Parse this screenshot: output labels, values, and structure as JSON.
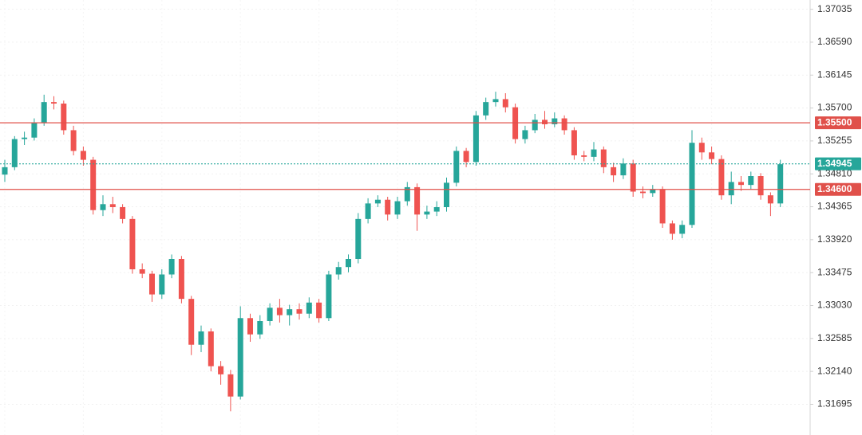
{
  "chart_data": {
    "type": "candlestick",
    "up_color": "#26a69a",
    "down_color": "#ef5350",
    "grid": true,
    "ylim": [
      1.3128,
      1.3716
    ],
    "yticks": [
      1.37035,
      {
        "value": 1.3659,
        "label": "1.36590"
      },
      1.36145,
      {
        "value": 1.357,
        "label": "1.35700"
      },
      1.35255,
      {
        "value": 1.3481,
        "label": "1.34810"
      },
      1.34365,
      {
        "value": 1.3392,
        "label": "1.33920"
      },
      1.33475,
      {
        "value": 1.3303,
        "label": "1.33030"
      },
      1.32585,
      {
        "value": 1.3214,
        "label": "1.32140"
      },
      1.31695
    ],
    "levels": [
      {
        "value": 1.355,
        "label": "1.35500",
        "color": "#e0504a",
        "style": "solid"
      },
      {
        "value": 1.34945,
        "label": "1.34945",
        "color": "#26a69a",
        "style": "dotted"
      },
      {
        "value": 1.346,
        "label": "1.34600",
        "color": "#e0504a",
        "style": "solid"
      }
    ],
    "open": [
      1.348,
      1.349,
      1.3528,
      1.353,
      1.355,
      1.3578,
      1.3576,
      1.354,
      1.3512,
      1.35,
      1.3432,
      1.344,
      1.3436,
      1.342,
      1.3352,
      1.3346,
      1.3318,
      1.3345,
      1.3366,
      1.3312,
      1.325,
      1.3268,
      1.3221,
      1.321,
      1.318,
      1.3286,
      1.3264,
      1.3282,
      1.33,
      1.329,
      1.3298,
      1.3292,
      1.3307,
      1.3286,
      1.3345,
      1.3355,
      1.3366,
      1.342,
      1.3441,
      1.3446,
      1.3426,
      1.3444,
      1.3463,
      1.3426,
      1.343,
      1.3436,
      1.3469,
      1.3512,
      1.3497,
      1.356,
      1.3578,
      1.3582,
      1.3571,
      1.3528,
      1.354,
      1.3554,
      1.3548,
      1.3556,
      1.354,
      1.3506,
      1.3504,
      1.3514,
      1.349,
      1.3479,
      1.3495,
      1.3457,
      1.3455,
      1.346,
      1.3414,
      1.34,
      1.3412,
      1.3523,
      1.351,
      1.3501,
      1.3452,
      1.347,
      1.3466,
      1.3478,
      1.3452,
      1.3441
    ],
    "high": [
      1.35,
      1.3532,
      1.3538,
      1.3556,
      1.3588,
      1.3586,
      1.358,
      1.3546,
      1.3518,
      1.3504,
      1.3452,
      1.345,
      1.344,
      1.3424,
      1.336,
      1.335,
      1.3352,
      1.3372,
      1.337,
      1.3316,
      1.3276,
      1.3272,
      1.3228,
      1.3216,
      1.3302,
      1.3292,
      1.329,
      1.3306,
      1.3312,
      1.3304,
      1.3306,
      1.3314,
      1.3312,
      1.335,
      1.3362,
      1.3372,
      1.3428,
      1.3448,
      1.3452,
      1.345,
      1.345,
      1.347,
      1.3468,
      1.3438,
      1.3444,
      1.3476,
      1.3518,
      1.3516,
      1.3566,
      1.3584,
      1.3592,
      1.359,
      1.3576,
      1.3546,
      1.3562,
      1.3566,
      1.3564,
      1.356,
      1.3544,
      1.3512,
      1.3524,
      1.3518,
      1.3496,
      1.3502,
      1.35,
      1.3464,
      1.3466,
      1.3464,
      1.3418,
      1.3418,
      1.354,
      1.353,
      1.3518,
      1.3506,
      1.3484,
      1.3478,
      1.3484,
      1.3482,
      1.3456,
      1.35
    ],
    "low": [
      1.347,
      1.3486,
      1.352,
      1.3526,
      1.3546,
      1.3568,
      1.3534,
      1.3506,
      1.3492,
      1.3426,
      1.3424,
      1.3428,
      1.3414,
      1.3346,
      1.334,
      1.3308,
      1.3312,
      1.334,
      1.3306,
      1.3236,
      1.324,
      1.3214,
      1.3196,
      1.316,
      1.3176,
      1.3254,
      1.3258,
      1.3276,
      1.328,
      1.3276,
      1.3284,
      1.3286,
      1.328,
      1.3282,
      1.3338,
      1.3348,
      1.336,
      1.3414,
      1.3436,
      1.3418,
      1.342,
      1.3438,
      1.3404,
      1.342,
      1.3424,
      1.343,
      1.3464,
      1.349,
      1.3492,
      1.3554,
      1.3572,
      1.3564,
      1.3522,
      1.3522,
      1.3536,
      1.3542,
      1.3544,
      1.3534,
      1.35,
      1.3498,
      1.3498,
      1.3482,
      1.347,
      1.3474,
      1.345,
      1.3448,
      1.345,
      1.3408,
      1.3392,
      1.3394,
      1.3408,
      1.35,
      1.3494,
      1.3446,
      1.344,
      1.3458,
      1.346,
      1.3446,
      1.3424,
      1.3436
    ],
    "close": [
      1.349,
      1.3528,
      1.353,
      1.355,
      1.3578,
      1.3576,
      1.354,
      1.3512,
      1.35,
      1.3432,
      1.344,
      1.3436,
      1.342,
      1.3352,
      1.3346,
      1.3318,
      1.3345,
      1.3366,
      1.3312,
      1.325,
      1.3268,
      1.3221,
      1.321,
      1.318,
      1.3286,
      1.3264,
      1.3282,
      1.33,
      1.329,
      1.3298,
      1.3292,
      1.3307,
      1.3286,
      1.3345,
      1.3355,
      1.3366,
      1.342,
      1.3441,
      1.3446,
      1.3426,
      1.3444,
      1.3463,
      1.3426,
      1.343,
      1.3436,
      1.3469,
      1.3512,
      1.3497,
      1.356,
      1.3578,
      1.3582,
      1.3571,
      1.3528,
      1.354,
      1.3554,
      1.3548,
      1.3556,
      1.354,
      1.3506,
      1.3504,
      1.3514,
      1.349,
      1.3479,
      1.3495,
      1.3457,
      1.3455,
      1.346,
      1.3414,
      1.34,
      1.3412,
      1.3523,
      1.351,
      1.3501,
      1.3452,
      1.347,
      1.3466,
      1.3478,
      1.3452,
      1.3441,
      1.3494
    ]
  }
}
